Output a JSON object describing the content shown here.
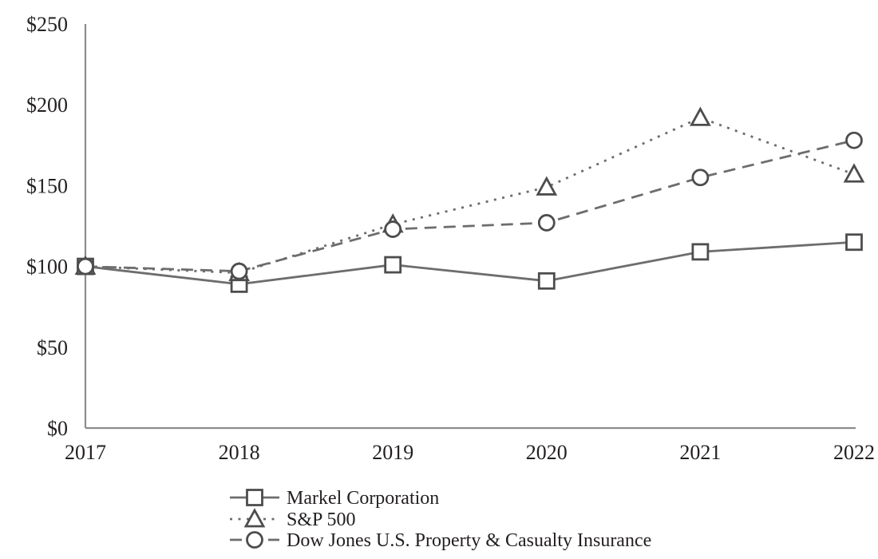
{
  "chart_data": {
    "type": "line",
    "title": "",
    "x_categories": [
      "2017",
      "2018",
      "2019",
      "2020",
      "2021",
      "2022"
    ],
    "ylim": [
      0,
      250
    ],
    "y_ticks": [
      {
        "value": 250,
        "label": "$250"
      },
      {
        "value": 200,
        "label": "$200"
      },
      {
        "value": 150,
        "label": "$150"
      },
      {
        "value": 100,
        "label": "$100"
      },
      {
        "value": 50,
        "label": "$50"
      },
      {
        "value": 0,
        "label": "$0"
      }
    ],
    "grid": false,
    "legend_position": "bottom-left",
    "series": [
      {
        "name": "Markel Corporation",
        "marker": "square",
        "line_style": "solid",
        "values": [
          100,
          89,
          101,
          91,
          109,
          115
        ]
      },
      {
        "name": "S&P 500",
        "marker": "triangle",
        "line_style": "dotted",
        "values": [
          100,
          96,
          126,
          149,
          192,
          157
        ]
      },
      {
        "name": "Dow Jones U.S. Property & Casualty Insurance",
        "marker": "circle",
        "line_style": "dashed",
        "values": [
          100,
          97,
          123,
          127,
          155,
          178
        ]
      }
    ],
    "colors": {
      "line": "#6d6d6d",
      "marker_stroke": "#4d4d4d",
      "marker_fill": "#ffffff",
      "axis": "#8c8c8c",
      "text": "#231f20"
    }
  }
}
